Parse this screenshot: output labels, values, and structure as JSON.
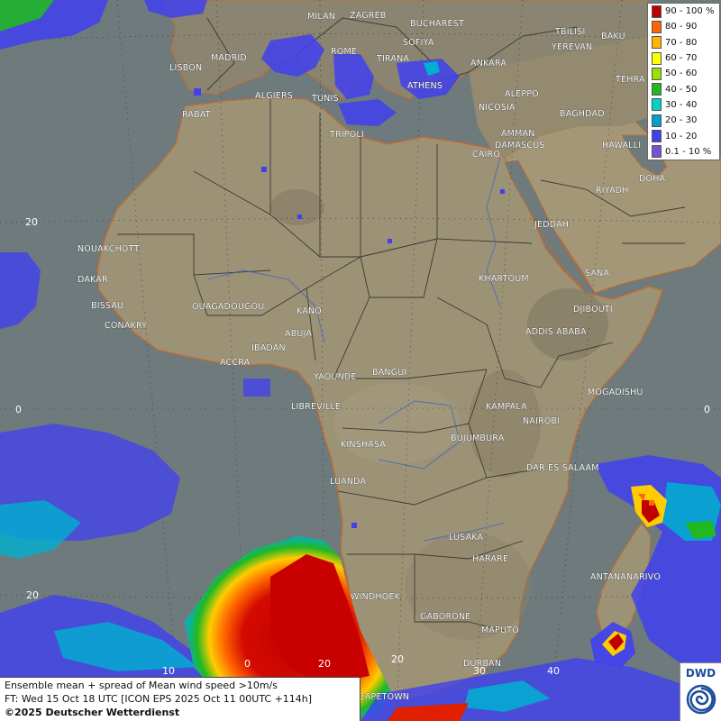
{
  "legend": {
    "items": [
      {
        "label": "90 - 100 %",
        "color": "#c00000"
      },
      {
        "label": "80 - 90",
        "color": "#ff6600"
      },
      {
        "label": "70 - 80",
        "color": "#ffb400"
      },
      {
        "label": "60 - 70",
        "color": "#ffff00"
      },
      {
        "label": "50 - 60",
        "color": "#9be000"
      },
      {
        "label": "40 - 50",
        "color": "#22b822"
      },
      {
        "label": "30 - 40",
        "color": "#00d2c8"
      },
      {
        "label": "20 - 30",
        "color": "#00a0c8"
      },
      {
        "label": "10 - 20",
        "color": "#4040f0"
      },
      {
        "label": "0.1 - 10 %",
        "color": "#7a50d0"
      }
    ]
  },
  "cities": [
    {
      "name": "MILAN"
    },
    {
      "name": "ZAGREB"
    },
    {
      "name": "BUCHAREST"
    },
    {
      "name": "BAKU"
    },
    {
      "name": "SOFIYA"
    },
    {
      "name": "TBILISI"
    },
    {
      "name": "YEREVAN"
    },
    {
      "name": "MADRID"
    },
    {
      "name": "ROME"
    },
    {
      "name": "TIRANA"
    },
    {
      "name": "ANKARA"
    },
    {
      "name": "TEHRA"
    },
    {
      "name": "LISBON"
    },
    {
      "name": "ATHENS"
    },
    {
      "name": "ALGIERS"
    },
    {
      "name": "TUNIS"
    },
    {
      "name": "ALEPPO"
    },
    {
      "name": "RABAT"
    },
    {
      "name": "NICOSIA"
    },
    {
      "name": "BAGHDAD"
    },
    {
      "name": "DAMASCUS"
    },
    {
      "name": "TRIPOLI"
    },
    {
      "name": "AMMAN"
    },
    {
      "name": "HAWALLI"
    },
    {
      "name": "CAIRO"
    },
    {
      "name": "DOHA"
    },
    {
      "name": "RIYADH"
    },
    {
      "name": "JEDDAH"
    },
    {
      "name": "NOUAKCHOTT"
    },
    {
      "name": "DAKAR"
    },
    {
      "name": "KHARTOUM"
    },
    {
      "name": "SANA"
    },
    {
      "name": "BISSAU"
    },
    {
      "name": "OUAGADOUGOU"
    },
    {
      "name": "KANO"
    },
    {
      "name": "DJIBOUTI"
    },
    {
      "name": "CONAKRY"
    },
    {
      "name": "ABUJA"
    },
    {
      "name": "ADDIS ABABA"
    },
    {
      "name": "IBADAN"
    },
    {
      "name": "ACCRA"
    },
    {
      "name": "YAOUNDE"
    },
    {
      "name": "BANGUI"
    },
    {
      "name": "MOGADISHU"
    },
    {
      "name": "LIBREVILLE"
    },
    {
      "name": "KAMPALA"
    },
    {
      "name": "NAIROBI"
    },
    {
      "name": "KINSHASA"
    },
    {
      "name": "BUJUMBURA"
    },
    {
      "name": "DAR ES SALAAM"
    },
    {
      "name": "LUANDA"
    },
    {
      "name": "LUSAKA"
    },
    {
      "name": "HARARE"
    },
    {
      "name": "ANTANANARIVO"
    },
    {
      "name": "WINDHOEK"
    },
    {
      "name": "GABORONE"
    },
    {
      "name": "MAPUTO"
    },
    {
      "name": "DURBAN"
    },
    {
      "name": "CAPETOWN"
    }
  ],
  "grid_labels": {
    "lat_20n": "20",
    "lat_0_left": "0",
    "lat_0_right": "0",
    "lat_20s": "20",
    "lon_10": "10",
    "lon_0": "0",
    "lon_20": "20",
    "lon_30": "30",
    "lon_40": "40"
  },
  "info": {
    "line1": "Ensemble mean + spread of Mean wind speed >10m/s",
    "line2": "FT: Wed 15 Oct 18 UTC [ICON EPS 2025 Oct 11 00UTC +114h]",
    "line3": "©2025 Deutscher Wetterdienst"
  },
  "logo": {
    "text": "DWD"
  }
}
